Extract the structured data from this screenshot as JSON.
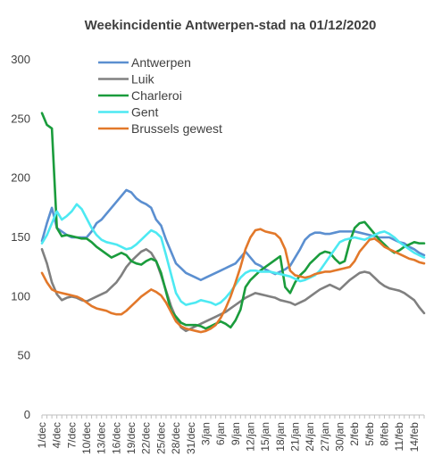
{
  "chart_data": {
    "type": "line",
    "title": "Weekincidentie  Antwerpen-stad  na 01/12/2020",
    "xlabel": "",
    "ylabel": "",
    "ylim": [
      0,
      300
    ],
    "yticks": [
      0,
      50,
      100,
      150,
      200,
      250,
      300
    ],
    "grid": false,
    "legend_position": "top-left",
    "x": [
      "1/dec",
      "2/dec",
      "3/dec",
      "4/dec",
      "5/dec",
      "6/dec",
      "7/dec",
      "8/dec",
      "9/dec",
      "10/dec",
      "11/dec",
      "12/dec",
      "13/dec",
      "14/dec",
      "15/dec",
      "16/dec",
      "17/dec",
      "18/dec",
      "19/dec",
      "20/dec",
      "21/dec",
      "22/dec",
      "23/dec",
      "24/dec",
      "25/dec",
      "26/dec",
      "27/dec",
      "28/dec",
      "29/dec",
      "30/dec",
      "31/dec",
      "1/jan",
      "2/jan",
      "3/jan",
      "4/jan",
      "5/jan",
      "6/jan",
      "7/jan",
      "8/jan",
      "9/jan",
      "10/jan",
      "11/jan",
      "12/jan",
      "13/jan",
      "14/jan",
      "15/jan",
      "16/jan",
      "17/jan",
      "18/jan",
      "19/jan",
      "20/jan",
      "21/jan",
      "22/jan",
      "23/jan",
      "24/jan",
      "25/jan",
      "26/jan",
      "27/jan",
      "28/jan",
      "29/jan",
      "30/jan",
      "31/jan",
      "1/feb",
      "2/feb",
      "3/feb",
      "4/feb",
      "5/feb",
      "6/feb",
      "7/feb",
      "8/feb",
      "9/feb",
      "10/feb",
      "11/feb",
      "12/feb",
      "13/feb",
      "14/feb",
      "15/feb",
      "16/feb"
    ],
    "xtick_labels": [
      "1/dec",
      "4/dec",
      "7/dec",
      "10/dec",
      "13/dec",
      "16/dec",
      "19/dec",
      "22/dec",
      "25/dec",
      "28/dec",
      "31/dec",
      "3/jan",
      "6/jan",
      "9/jan",
      "12/jan",
      "15/jan",
      "18/jan",
      "21/jan",
      "24/jan",
      "27/jan",
      "30/jan",
      "2/feb",
      "5/feb",
      "8/feb",
      "11/feb",
      "14/feb"
    ],
    "series": [
      {
        "name": "Antwerpen",
        "color": "#5b8fd0",
        "values": [
          147,
          162,
          175,
          158,
          155,
          152,
          150,
          150,
          150,
          150,
          155,
          162,
          165,
          170,
          175,
          180,
          185,
          190,
          188,
          183,
          180,
          178,
          175,
          165,
          160,
          148,
          138,
          128,
          124,
          120,
          118,
          116,
          114,
          116,
          118,
          120,
          122,
          124,
          126,
          128,
          133,
          138,
          133,
          128,
          126,
          123,
          121,
          119,
          121,
          123,
          126,
          133,
          140,
          148,
          152,
          154,
          154,
          153,
          153,
          154,
          155,
          155,
          155,
          155,
          154,
          153,
          152,
          151,
          150,
          150,
          150,
          148,
          146,
          145,
          142,
          140,
          137,
          135
        ]
      },
      {
        "name": "Luik",
        "color": "#808080",
        "values": [
          140,
          128,
          112,
          102,
          97,
          99,
          100,
          99,
          97,
          96,
          98,
          100,
          102,
          104,
          108,
          112,
          118,
          125,
          130,
          134,
          138,
          140,
          137,
          130,
          118,
          105,
          92,
          82,
          74,
          71,
          73,
          75,
          77,
          79,
          81,
          83,
          85,
          87,
          90,
          93,
          96,
          99,
          101,
          103,
          102,
          101,
          100,
          99,
          97,
          96,
          95,
          93,
          95,
          97,
          100,
          103,
          106,
          108,
          110,
          108,
          106,
          110,
          114,
          117,
          120,
          121,
          120,
          116,
          112,
          109,
          107,
          106,
          105,
          103,
          100,
          97,
          91,
          86
        ]
      },
      {
        "name": "Charleroi",
        "color": "#1a9c3c",
        "values": [
          255,
          245,
          242,
          158,
          151,
          152,
          151,
          150,
          149,
          149,
          146,
          142,
          139,
          136,
          133,
          135,
          137,
          135,
          130,
          128,
          127,
          130,
          132,
          130,
          120,
          104,
          88,
          83,
          78,
          76,
          76,
          76,
          75,
          73,
          75,
          77,
          79,
          77,
          74,
          80,
          89,
          108,
          114,
          118,
          122,
          125,
          128,
          131,
          134,
          108,
          103,
          112,
          118,
          122,
          128,
          132,
          136,
          138,
          137,
          132,
          128,
          130,
          146,
          158,
          162,
          163,
          158,
          153,
          148,
          144,
          140,
          137,
          139,
          142,
          144,
          146,
          145,
          145
        ]
      },
      {
        "name": "Gent",
        "color": "#4de9f2",
        "values": [
          145,
          152,
          162,
          172,
          165,
          168,
          172,
          178,
          174,
          166,
          158,
          152,
          148,
          146,
          145,
          144,
          142,
          140,
          141,
          144,
          148,
          152,
          156,
          154,
          150,
          135,
          119,
          103,
          96,
          93,
          94,
          95,
          97,
          96,
          95,
          93,
          95,
          99,
          104,
          110,
          116,
          120,
          122,
          122,
          121,
          121,
          121,
          120,
          119,
          118,
          117,
          115,
          113,
          114,
          116,
          118,
          122,
          128,
          134,
          140,
          146,
          148,
          149,
          150,
          149,
          148,
          150,
          152,
          154,
          155,
          153,
          150,
          146,
          143,
          140,
          137,
          135,
          133
        ]
      },
      {
        "name": "Brussels gewest",
        "color": "#e2782a",
        "values": [
          120,
          112,
          106,
          104,
          103,
          102,
          101,
          100,
          98,
          95,
          92,
          90,
          89,
          88,
          86,
          85,
          85,
          88,
          92,
          96,
          100,
          103,
          106,
          104,
          101,
          95,
          87,
          79,
          75,
          73,
          72,
          71,
          70,
          71,
          73,
          76,
          82,
          90,
          100,
          112,
          125,
          140,
          150,
          156,
          157,
          155,
          154,
          153,
          149,
          140,
          122,
          118,
          117,
          116,
          117,
          119,
          120,
          121,
          121,
          122,
          123,
          124,
          125,
          130,
          138,
          143,
          148,
          149,
          146,
          142,
          140,
          138,
          136,
          134,
          132,
          131,
          129,
          128
        ]
      }
    ]
  }
}
